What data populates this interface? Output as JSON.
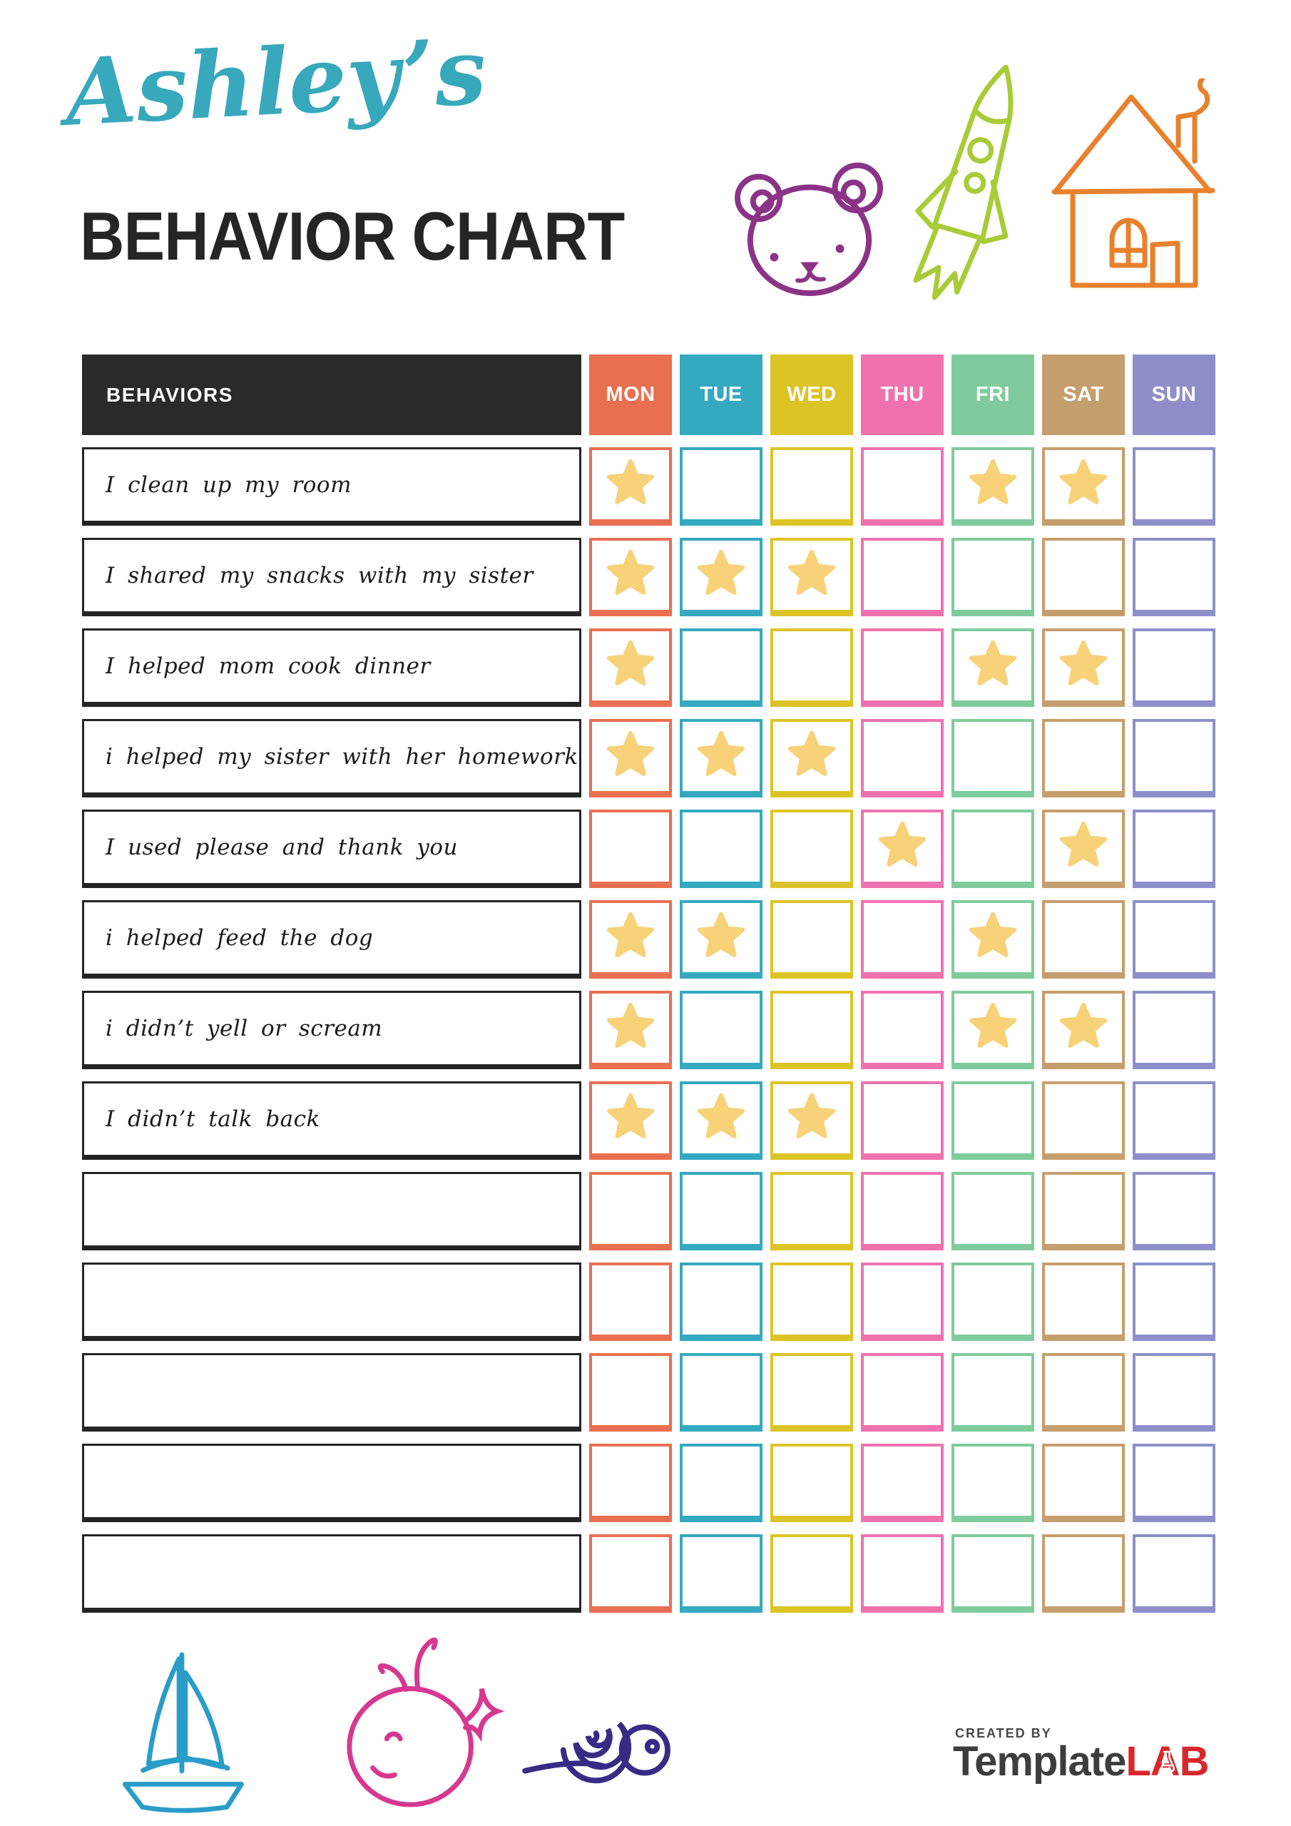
{
  "header": {
    "name": "Ashley’s",
    "title": "BEHAVIOR CHART"
  },
  "colors": {
    "title_teal": "#38a8bc",
    "title_black": "#252525",
    "behaviors_header_bg": "#2a2a2a",
    "star": "#f7d279",
    "brand_gray": "#3d3d3d",
    "brand_red": "#d9262b",
    "bear": "#8b3387",
    "rocket": "#a9cb38",
    "house": "#e8812e",
    "sailboat": "#2a9cc8",
    "whale": "#d63890",
    "snail": "#382b85"
  },
  "table": {
    "behaviors_header": "BEHAVIORS",
    "days": [
      {
        "key": "MON",
        "label": "MON",
        "color": "#e96f51"
      },
      {
        "key": "TUE",
        "label": "TUE",
        "color": "#34a9bf"
      },
      {
        "key": "WED",
        "label": "WED",
        "color": "#dcc427"
      },
      {
        "key": "THU",
        "label": "THU",
        "color": "#ef72ae"
      },
      {
        "key": "FRI",
        "label": "FRI",
        "color": "#7fcb9d"
      },
      {
        "key": "SAT",
        "label": "SAT",
        "color": "#c59e6d"
      },
      {
        "key": "SUN",
        "label": "SUN",
        "color": "#8e8fca"
      }
    ],
    "rows": [
      {
        "label": "I clean up my room",
        "stars": [
          "MON",
          "FRI",
          "SAT"
        ]
      },
      {
        "label": "I shared my snacks with my sister",
        "stars": [
          "MON",
          "TUE",
          "WED"
        ]
      },
      {
        "label": "I helped mom cook dinner",
        "stars": [
          "MON",
          "FRI",
          "SAT"
        ]
      },
      {
        "label": "i helped my sister with her homework",
        "stars": [
          "MON",
          "TUE",
          "WED"
        ]
      },
      {
        "label": "I used please and thank you",
        "stars": [
          "THU",
          "SAT"
        ]
      },
      {
        "label": "i helped feed the dog",
        "stars": [
          "MON",
          "TUE",
          "FRI"
        ]
      },
      {
        "label": "i didn’t yell or scream",
        "stars": [
          "MON",
          "FRI",
          "SAT"
        ]
      },
      {
        "label": "I didn’t talk back",
        "stars": [
          "MON",
          "TUE",
          "WED"
        ]
      },
      {
        "label": "",
        "stars": []
      },
      {
        "label": "",
        "stars": []
      },
      {
        "label": "",
        "stars": []
      },
      {
        "label": "",
        "stars": []
      },
      {
        "label": "",
        "stars": []
      }
    ]
  },
  "footer": {
    "created_by": "CREATED BY",
    "brand_primary": "Template",
    "brand_secondary": "LAB"
  }
}
